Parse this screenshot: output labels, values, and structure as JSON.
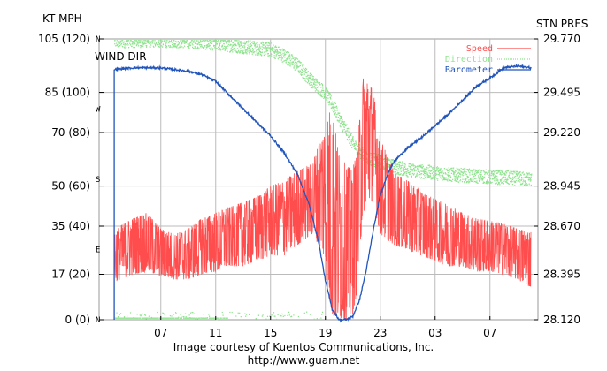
{
  "chart_data": {
    "type": "line",
    "left_axis_title": "KT MPH",
    "right_axis_title": "STN PRES",
    "direction_axis_title": "WIND DIR",
    "left_ticks": [
      {
        "kt": 105,
        "label": "105 (120)"
      },
      {
        "kt": 85,
        "label": "85 (100)"
      },
      {
        "kt": 70,
        "label": "70  (80)"
      },
      {
        "kt": 50,
        "label": "50  (60)"
      },
      {
        "kt": 35,
        "label": "35  (40)"
      },
      {
        "kt": 17,
        "label": "17  (20)"
      },
      {
        "kt": 0,
        "label": "0   (0)"
      }
    ],
    "right_ticks": [
      "29.770",
      "29.495",
      "29.220",
      "28.945",
      "28.670",
      "28.395",
      "28.120"
    ],
    "right_range": [
      28.12,
      29.77
    ],
    "direction_ticks": [
      "N",
      "W",
      "S",
      "E",
      "N"
    ],
    "x_ticks": [
      "07",
      "11",
      "15",
      "19",
      "23",
      "03",
      "07"
    ],
    "x_tick_hours": [
      7,
      11,
      15,
      19,
      23,
      27,
      31
    ],
    "x_range_hours": [
      2.5,
      34.5
    ],
    "y_range_kt": [
      0,
      105
    ],
    "grid": true,
    "legend": {
      "placement": "top-right",
      "entries": [
        {
          "label": "Speed",
          "color": "#ff4d4d"
        },
        {
          "label": "Direction",
          "color": "#8fe38f"
        },
        {
          "label": "Barometer",
          "color": "#2255bb"
        }
      ]
    },
    "series": [
      {
        "name": "Speed",
        "unit": "kt",
        "color": "#ff4d4d",
        "x": [
          3.6,
          4,
          5,
          6,
          7,
          8,
          9,
          10,
          11,
          12,
          13,
          14,
          15,
          16,
          17,
          18,
          18.8,
          19.3,
          19.6,
          20,
          20.5,
          20.9,
          21.3,
          21.7,
          22,
          22.5,
          23,
          24,
          25,
          26,
          27,
          28,
          29,
          30,
          31,
          32,
          33,
          34
        ],
        "min": [
          14,
          15,
          17,
          18,
          16,
          15,
          15,
          17,
          18,
          20,
          20,
          22,
          24,
          24,
          28,
          32,
          26,
          6,
          0,
          0,
          0,
          0,
          10,
          38,
          45,
          44,
          32,
          28,
          26,
          24,
          22,
          20,
          20,
          18,
          18,
          17,
          15,
          12
        ],
        "max": [
          33,
          35,
          38,
          40,
          34,
          32,
          34,
          38,
          40,
          42,
          44,
          46,
          50,
          52,
          56,
          58,
          70,
          78,
          75,
          62,
          58,
          56,
          62,
          90,
          92,
          85,
          68,
          55,
          52,
          48,
          45,
          43,
          40,
          38,
          37,
          36,
          34,
          33
        ]
      },
      {
        "name": "Direction",
        "unit": "deg",
        "color": "#8fe38f",
        "x": [
          3.6,
          5,
          7,
          9,
          11,
          13,
          15,
          16,
          17,
          18,
          19,
          19.5,
          20,
          20.5,
          21,
          21.5,
          22,
          23,
          24,
          25,
          26,
          27,
          28,
          29,
          30,
          31,
          32,
          33,
          34
        ],
        "values": [
          357,
          358,
          358,
          357,
          354,
          350,
          346,
          338,
          325,
          305,
          290,
          275,
          258,
          242,
          225,
          215,
          208,
          202,
          196,
          192,
          190,
          188,
          186,
          185,
          184,
          183,
          182,
          181,
          180
        ]
      },
      {
        "name": "Barometer",
        "unit": "inHg",
        "color": "#2255bb",
        "x": [
          3.6,
          5,
          7,
          9,
          10,
          11,
          12,
          13,
          14,
          15,
          16,
          17,
          17.8,
          18.5,
          19,
          19.5,
          20,
          20.5,
          21,
          21.5,
          22,
          22.5,
          23,
          23.5,
          24,
          25,
          26,
          27,
          28,
          29,
          30,
          31,
          32,
          33,
          34
        ],
        "values": [
          29.59,
          29.6,
          29.6,
          29.58,
          29.56,
          29.52,
          29.44,
          29.36,
          29.28,
          29.2,
          29.1,
          28.97,
          28.8,
          28.58,
          28.35,
          28.18,
          28.12,
          28.12,
          28.14,
          28.24,
          28.42,
          28.65,
          28.85,
          28.97,
          29.05,
          29.13,
          29.19,
          29.26,
          29.33,
          29.41,
          29.49,
          29.54,
          29.6,
          29.61,
          29.6
        ]
      }
    ]
  },
  "credit": {
    "line1": "Image courtesy of Kuentos Communications, Inc.",
    "line2": "http://www.guam.net"
  }
}
